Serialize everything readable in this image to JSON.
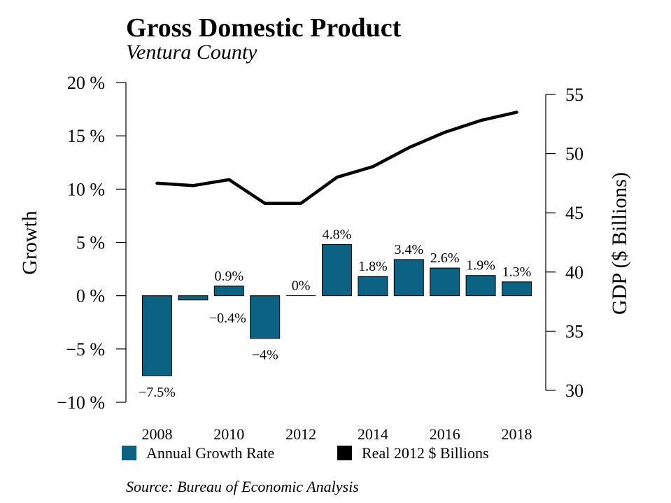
{
  "chart_data": {
    "type": "bar+line",
    "title": "Gross Domestic Product",
    "subtitle": "Ventura County",
    "source": "Source: Bureau of Economic Analysis",
    "x": [
      2008,
      2009,
      2010,
      2011,
      2012,
      2013,
      2014,
      2015,
      2016,
      2017,
      2018
    ],
    "x_tick_labels": [
      "2008",
      "2010",
      "2012",
      "2014",
      "2016",
      "2018"
    ],
    "left_axis": {
      "label": "Growth",
      "ylim": [
        -10,
        20
      ],
      "ticks": [
        -10,
        -5,
        0,
        5,
        10,
        15,
        20
      ],
      "tick_labels": [
        "−10 %",
        "−5 %",
        "0 %",
        "5 %",
        "10 %",
        "15 %",
        "20 %"
      ]
    },
    "right_axis": {
      "label": "GDP ($ Billions)",
      "ylim": [
        30,
        55
      ],
      "ticks": [
        30,
        35,
        40,
        45,
        50,
        55
      ],
      "tick_labels": [
        "30",
        "35",
        "40",
        "45",
        "50",
        "55"
      ]
    },
    "series": [
      {
        "name": "Annual Growth Rate",
        "type": "bar",
        "axis": "left",
        "color": "#0b6283",
        "values": [
          -7.5,
          -0.4,
          0.9,
          -4,
          0,
          4.8,
          1.8,
          3.4,
          2.6,
          1.9,
          1.3
        ],
        "labels": [
          "−7.5%",
          "−0.4%",
          "0.9%",
          "−4%",
          "0%",
          "4.8%",
          "1.8%",
          "3.4%",
          "2.6%",
          "1.9%",
          "1.3%"
        ]
      },
      {
        "name": "Real 2012 $ Billions",
        "type": "line",
        "axis": "right",
        "color": "#000000",
        "values": [
          47.5,
          47.3,
          47.8,
          45.8,
          45.8,
          48.0,
          48.9,
          50.5,
          51.8,
          52.8,
          53.5
        ]
      }
    ],
    "legend_position": "bottom"
  }
}
